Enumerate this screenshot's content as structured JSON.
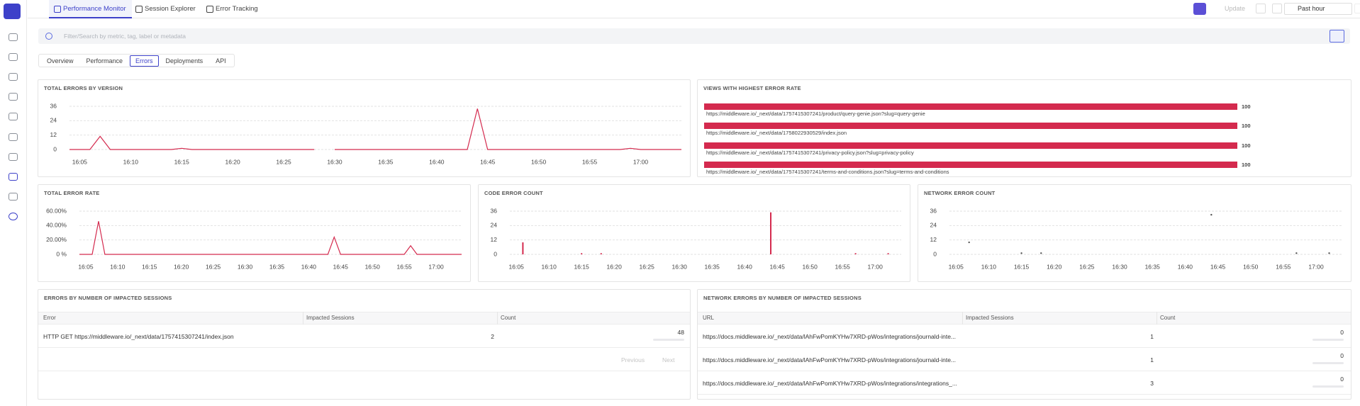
{
  "nav": {
    "tabs": [
      "Performance Monitor",
      "Session Explorer",
      "Error Tracking"
    ],
    "active_tab": 0,
    "update": "Update",
    "time_range": "Past hour"
  },
  "search": {
    "placeholder": "Filter/Search by metric, tag, label or metadata"
  },
  "sub_tabs": {
    "items": [
      "Overview",
      "Performance",
      "Errors",
      "Deployments",
      "API"
    ],
    "active": 2
  },
  "time_charts": [
    {
      "type": "line",
      "title": "TOTAL ERRORS BY VERSION",
      "color": "#d42a4e",
      "x": [
        "16:04",
        "16:06",
        "16:07",
        "16:08",
        "16:14",
        "16:15",
        "16:16",
        "16:28",
        "16:29",
        "16:30",
        "16:43",
        "16:44",
        "16:45",
        "16:58",
        "16:59",
        "17:00",
        "17:04"
      ],
      "values": [
        0,
        0,
        11,
        0,
        0,
        1,
        0,
        0,
        null,
        0,
        0,
        34,
        0,
        0,
        1,
        0,
        0
      ],
      "xlim": [
        "16:04",
        "17:04"
      ],
      "xticks": [
        "16:05",
        "16:10",
        "16:15",
        "16:20",
        "16:25",
        "16:30",
        "16:35",
        "16:40",
        "16:45",
        "16:50",
        "16:55",
        "17:00"
      ],
      "ylim": [
        0,
        36
      ],
      "yticks": [
        0,
        12,
        24,
        36
      ],
      "grid": true
    },
    {
      "type": "line",
      "title": "TOTAL ERROR RATE",
      "color": "#d42a4e",
      "x": [
        "16:04",
        "16:06",
        "16:07",
        "16:08",
        "16:43",
        "16:44",
        "16:45",
        "16:55",
        "16:56",
        "16:57",
        "17:04"
      ],
      "values": [
        0,
        0,
        46,
        0,
        0,
        24,
        0,
        0,
        12,
        0,
        0
      ],
      "xlim": [
        "16:04",
        "17:04"
      ],
      "xticks": [
        "16:05",
        "16:10",
        "16:15",
        "16:20",
        "16:25",
        "16:30",
        "16:35",
        "16:40",
        "16:45",
        "16:50",
        "16:55",
        "17:00"
      ],
      "ylim": [
        0,
        60
      ],
      "yticks": [
        {
          "value": 0,
          "label": "0 %"
        },
        {
          "value": 20,
          "label": "20.00%"
        },
        {
          "value": 40,
          "label": "40.00%"
        },
        {
          "value": 60,
          "label": "60.00%"
        }
      ],
      "grid": true
    },
    {
      "type": "bar",
      "title": "CODE ERROR COUNT",
      "color": "#d42a4e",
      "x": [
        "16:06",
        "16:15",
        "16:18",
        "16:44",
        "16:57",
        "17:02"
      ],
      "values": [
        10,
        1,
        1,
        35,
        1,
        1
      ],
      "xlim": [
        "16:04",
        "17:04"
      ],
      "xticks": [
        "16:05",
        "16:10",
        "16:15",
        "16:20",
        "16:25",
        "16:30",
        "16:35",
        "16:40",
        "16:45",
        "16:50",
        "16:55",
        "17:00"
      ],
      "ylim": [
        0,
        36
      ],
      "yticks": [
        0,
        12,
        24,
        36
      ],
      "grid": true
    },
    {
      "type": "scatter",
      "title": "NETWORK ERROR COUNT",
      "color": "#555555",
      "x": [
        "16:07",
        "16:15",
        "16:18",
        "16:44",
        "16:57",
        "17:02"
      ],
      "values": [
        10,
        1,
        1,
        33,
        1,
        1
      ],
      "xlim": [
        "16:04",
        "17:04"
      ],
      "xticks": [
        "16:05",
        "16:10",
        "16:15",
        "16:20",
        "16:25",
        "16:30",
        "16:35",
        "16:40",
        "16:45",
        "16:50",
        "16:55",
        "17:00"
      ],
      "ylim": [
        0,
        36
      ],
      "yticks": [
        0,
        12,
        24,
        36
      ],
      "grid": true
    }
  ],
  "bar_panel": {
    "type": "hbar",
    "title": "VIEWS WITH HIGHEST ERROR RATE",
    "color": "#d42a4e",
    "categories": [
      "https://middleware.io/_next/data/1757415307241/product/query-genie.json?slug=query-genie",
      "https://middleware.io/_next/data/1758022930529/index.json",
      "https://middleware.io/_next/data/1757415307241/privacy-policy.json?slug=privacy-policy",
      "https://middleware.io/_next/data/1757415307241/terms-and-conditions.json?slug=terms-and-conditions"
    ],
    "values": [
      100,
      100,
      100,
      100
    ],
    "xlim": [
      0,
      100
    ]
  },
  "tables": [
    {
      "title": "ERRORS BY NUMBER OF IMPACTED SESSIONS",
      "columns": [
        "Error",
        "Impacted Sessions",
        "Count"
      ],
      "rows": [
        [
          "HTTP GET https://middleware.io/_next/data/1757415307241/index.json",
          2,
          48
        ]
      ],
      "pagination": [
        "Previous",
        "Next"
      ]
    },
    {
      "title": "NETWORK ERRORS BY NUMBER OF IMPACTED SESSIONS",
      "columns": [
        "URL",
        "Impacted Sessions",
        "Count"
      ],
      "rows": [
        [
          "https://docs.middleware.io/_next/data/lAhFwPomKYHw7XRD-pWos/integrations/journald-inte...",
          1,
          0
        ],
        [
          "https://docs.middleware.io/_next/data/lAhFwPomKYHw7XRD-pWos/integrations/journald-inte...",
          1,
          0
        ],
        [
          "https://docs.middleware.io/_next/data/lAhFwPomKYHw7XRD-pWos/integrations/integrations_...",
          3,
          0
        ]
      ]
    }
  ]
}
